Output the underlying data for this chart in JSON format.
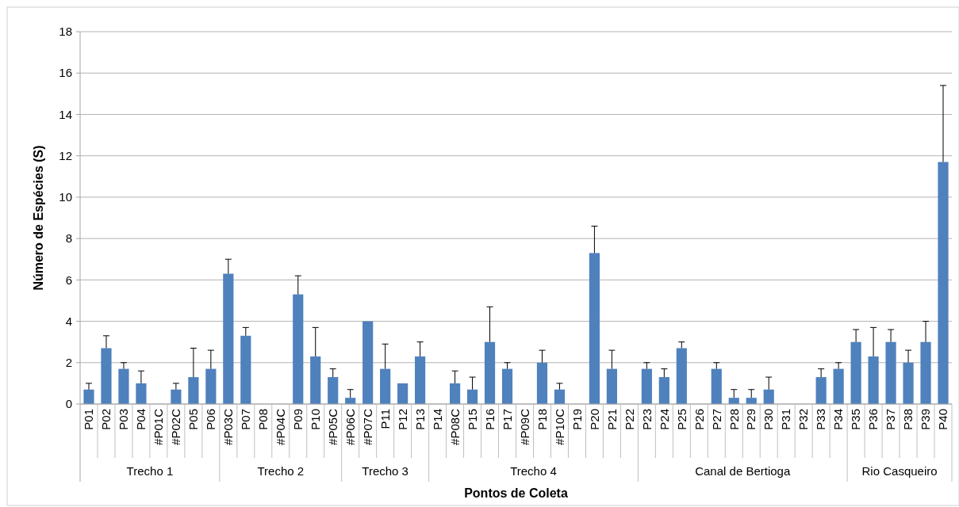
{
  "chart_data": {
    "type": "bar",
    "xlabel": "Pontos de Coleta",
    "ylabel": "Número de Espécies (S)",
    "categories": [
      "P01",
      "P02",
      "P03",
      "P04",
      "#P01C",
      "#P02C",
      "P05",
      "P06",
      "#P03C",
      "P07",
      "P08",
      "#P04C",
      "P09",
      "P10",
      "#P05C",
      "#P06C",
      "#P07C",
      "P11",
      "P12",
      "P13",
      "P14",
      "#P08C",
      "P15",
      "P16",
      "P17",
      "#P09C",
      "P18",
      "#P10C",
      "P19",
      "P20",
      "P21",
      "P22",
      "P23",
      "P24",
      "P25",
      "P26",
      "P27",
      "P28",
      "P29",
      "P30",
      "P31",
      "P32",
      "P33",
      "P34",
      "P35",
      "P36",
      "P37",
      "P38",
      "P39",
      "P40"
    ],
    "values": [
      0.7,
      2.7,
      1.7,
      1.0,
      0,
      0.7,
      1.3,
      1.7,
      6.3,
      3.3,
      0,
      0,
      5.3,
      2.3,
      1.3,
      0.3,
      4.0,
      1.7,
      1.0,
      2.3,
      0,
      1.0,
      0.7,
      3.0,
      1.7,
      0,
      2.0,
      0.7,
      0,
      7.3,
      1.7,
      0,
      1.7,
      1.3,
      2.7,
      0,
      1.7,
      0.3,
      0.3,
      0.7,
      0,
      0,
      1.3,
      1.7,
      3.0,
      2.3,
      3.0,
      2.0,
      3.0,
      11.7
    ],
    "errors": [
      [
        0.7,
        1.0
      ],
      [
        2.7,
        3.3
      ],
      [
        1.7,
        2.0
      ],
      [
        1.0,
        1.6
      ],
      null,
      [
        0.7,
        1.0
      ],
      [
        1.3,
        2.7
      ],
      [
        1.7,
        2.6
      ],
      [
        6.3,
        7.0
      ],
      [
        3.3,
        3.7
      ],
      null,
      null,
      [
        5.3,
        6.2
      ],
      [
        2.3,
        3.7
      ],
      [
        1.3,
        1.7
      ],
      [
        0.3,
        0.7
      ],
      null,
      [
        1.7,
        2.9
      ],
      null,
      [
        2.3,
        3.0
      ],
      null,
      [
        1.0,
        1.6
      ],
      [
        0.7,
        1.3
      ],
      [
        3.0,
        4.7
      ],
      [
        1.7,
        2.0
      ],
      null,
      [
        2.0,
        2.6
      ],
      [
        0.7,
        1.0
      ],
      null,
      [
        7.3,
        8.6
      ],
      [
        1.7,
        2.6
      ],
      null,
      [
        1.7,
        2.0
      ],
      [
        1.3,
        1.7
      ],
      [
        2.7,
        3.0
      ],
      null,
      [
        1.7,
        2.0
      ],
      [
        0.3,
        0.7
      ],
      [
        0.3,
        0.7
      ],
      [
        0.7,
        1.3
      ],
      null,
      null,
      [
        1.3,
        1.7
      ],
      [
        1.7,
        2.0
      ],
      [
        3.0,
        3.6
      ],
      [
        2.3,
        3.7
      ],
      [
        3.0,
        3.6
      ],
      [
        2.0,
        2.6
      ],
      [
        3.0,
        4.0
      ],
      [
        11.7,
        15.4
      ]
    ],
    "color": "#4f81bd",
    "ylim": [
      0,
      18
    ],
    "yticks": [
      0,
      2,
      4,
      6,
      8,
      10,
      12,
      14,
      16,
      18
    ],
    "grid": "y",
    "annotations": [
      "Trecho 1",
      "Trecho 2",
      "Trecho 3",
      "Trecho 4",
      "Canal de Bertioga",
      "Rio Casqueiro"
    ]
  }
}
